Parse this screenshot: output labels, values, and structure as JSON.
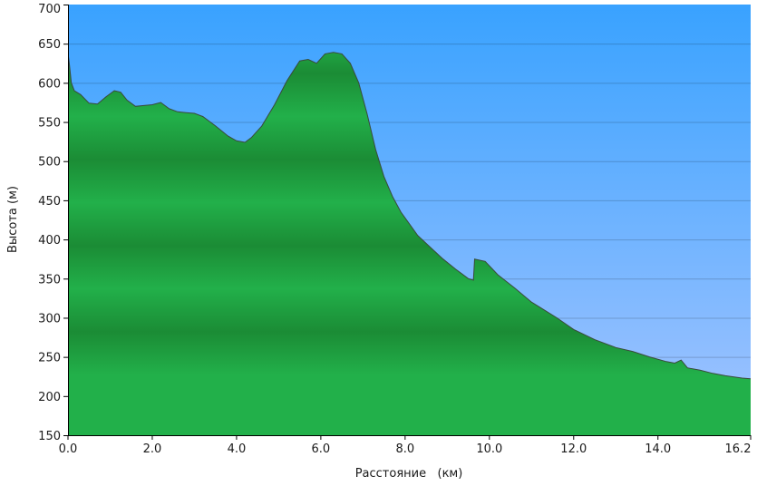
{
  "chart_data": {
    "type": "area",
    "title": "",
    "xlabel": "Расстояние   (км)",
    "ylabel": "Высота (м)",
    "xlim": [
      0,
      16.2
    ],
    "ylim": [
      150,
      700
    ],
    "x_ticks": [
      0,
      2,
      4,
      6,
      8,
      10,
      12,
      14,
      16.2
    ],
    "x_tick_labels": [
      "0.0",
      "2.0",
      "4.0",
      "6.0",
      "8.0",
      "10.0",
      "12.0",
      "14.0",
      "16.2"
    ],
    "y_ticks": [
      150,
      200,
      250,
      300,
      350,
      400,
      450,
      500,
      550,
      600,
      650,
      700
    ],
    "y_tick_labels": [
      "150",
      "200",
      "250",
      "300",
      "350",
      "400",
      "450",
      "500",
      "550",
      "600",
      "650",
      "700"
    ],
    "grid": true,
    "colors": {
      "sky_top": "#39a2ff",
      "sky_bottom": "#a3c4ff",
      "area_top": "#199234",
      "area_band_dark": "#1b8c35",
      "area_band_light": "#22b04a",
      "outline": "#3a4a3a"
    },
    "series": [
      {
        "x": [
          0.0,
          0.03,
          0.08,
          0.15,
          0.3,
          0.5,
          0.7,
          0.9,
          1.1,
          1.25,
          1.4,
          1.6,
          1.8,
          2.0,
          2.2,
          2.4,
          2.6,
          2.8,
          3.0,
          3.2,
          3.5,
          3.8,
          4.0,
          4.2,
          4.35,
          4.6,
          4.9,
          5.2,
          5.5,
          5.7,
          5.9,
          6.1,
          6.3,
          6.5,
          6.7,
          6.9,
          7.1,
          7.3,
          7.5,
          7.7,
          7.9,
          8.1,
          8.3,
          8.6,
          8.9,
          9.2,
          9.5,
          9.62,
          9.65,
          9.9,
          10.2,
          10.6,
          11.0,
          11.3,
          11.6,
          12.0,
          12.5,
          13.0,
          13.4,
          13.8,
          14.2,
          14.4,
          14.55,
          14.7,
          15.0,
          15.3,
          15.6,
          16.0,
          16.2
        ],
        "values": [
          638,
          625,
          600,
          590,
          585,
          574,
          573,
          582,
          590,
          588,
          578,
          570,
          571,
          572,
          575,
          567,
          563,
          562,
          561,
          557,
          545,
          532,
          526,
          524,
          530,
          545,
          572,
          603,
          628,
          630,
          625,
          637,
          639,
          637,
          625,
          600,
          560,
          515,
          480,
          455,
          435,
          420,
          405,
          390,
          375,
          362,
          350,
          348,
          375,
          372,
          355,
          338,
          320,
          310,
          300,
          285,
          272,
          262,
          257,
          250,
          244,
          242,
          246,
          236,
          233,
          229,
          226,
          223,
          222
        ]
      }
    ]
  }
}
